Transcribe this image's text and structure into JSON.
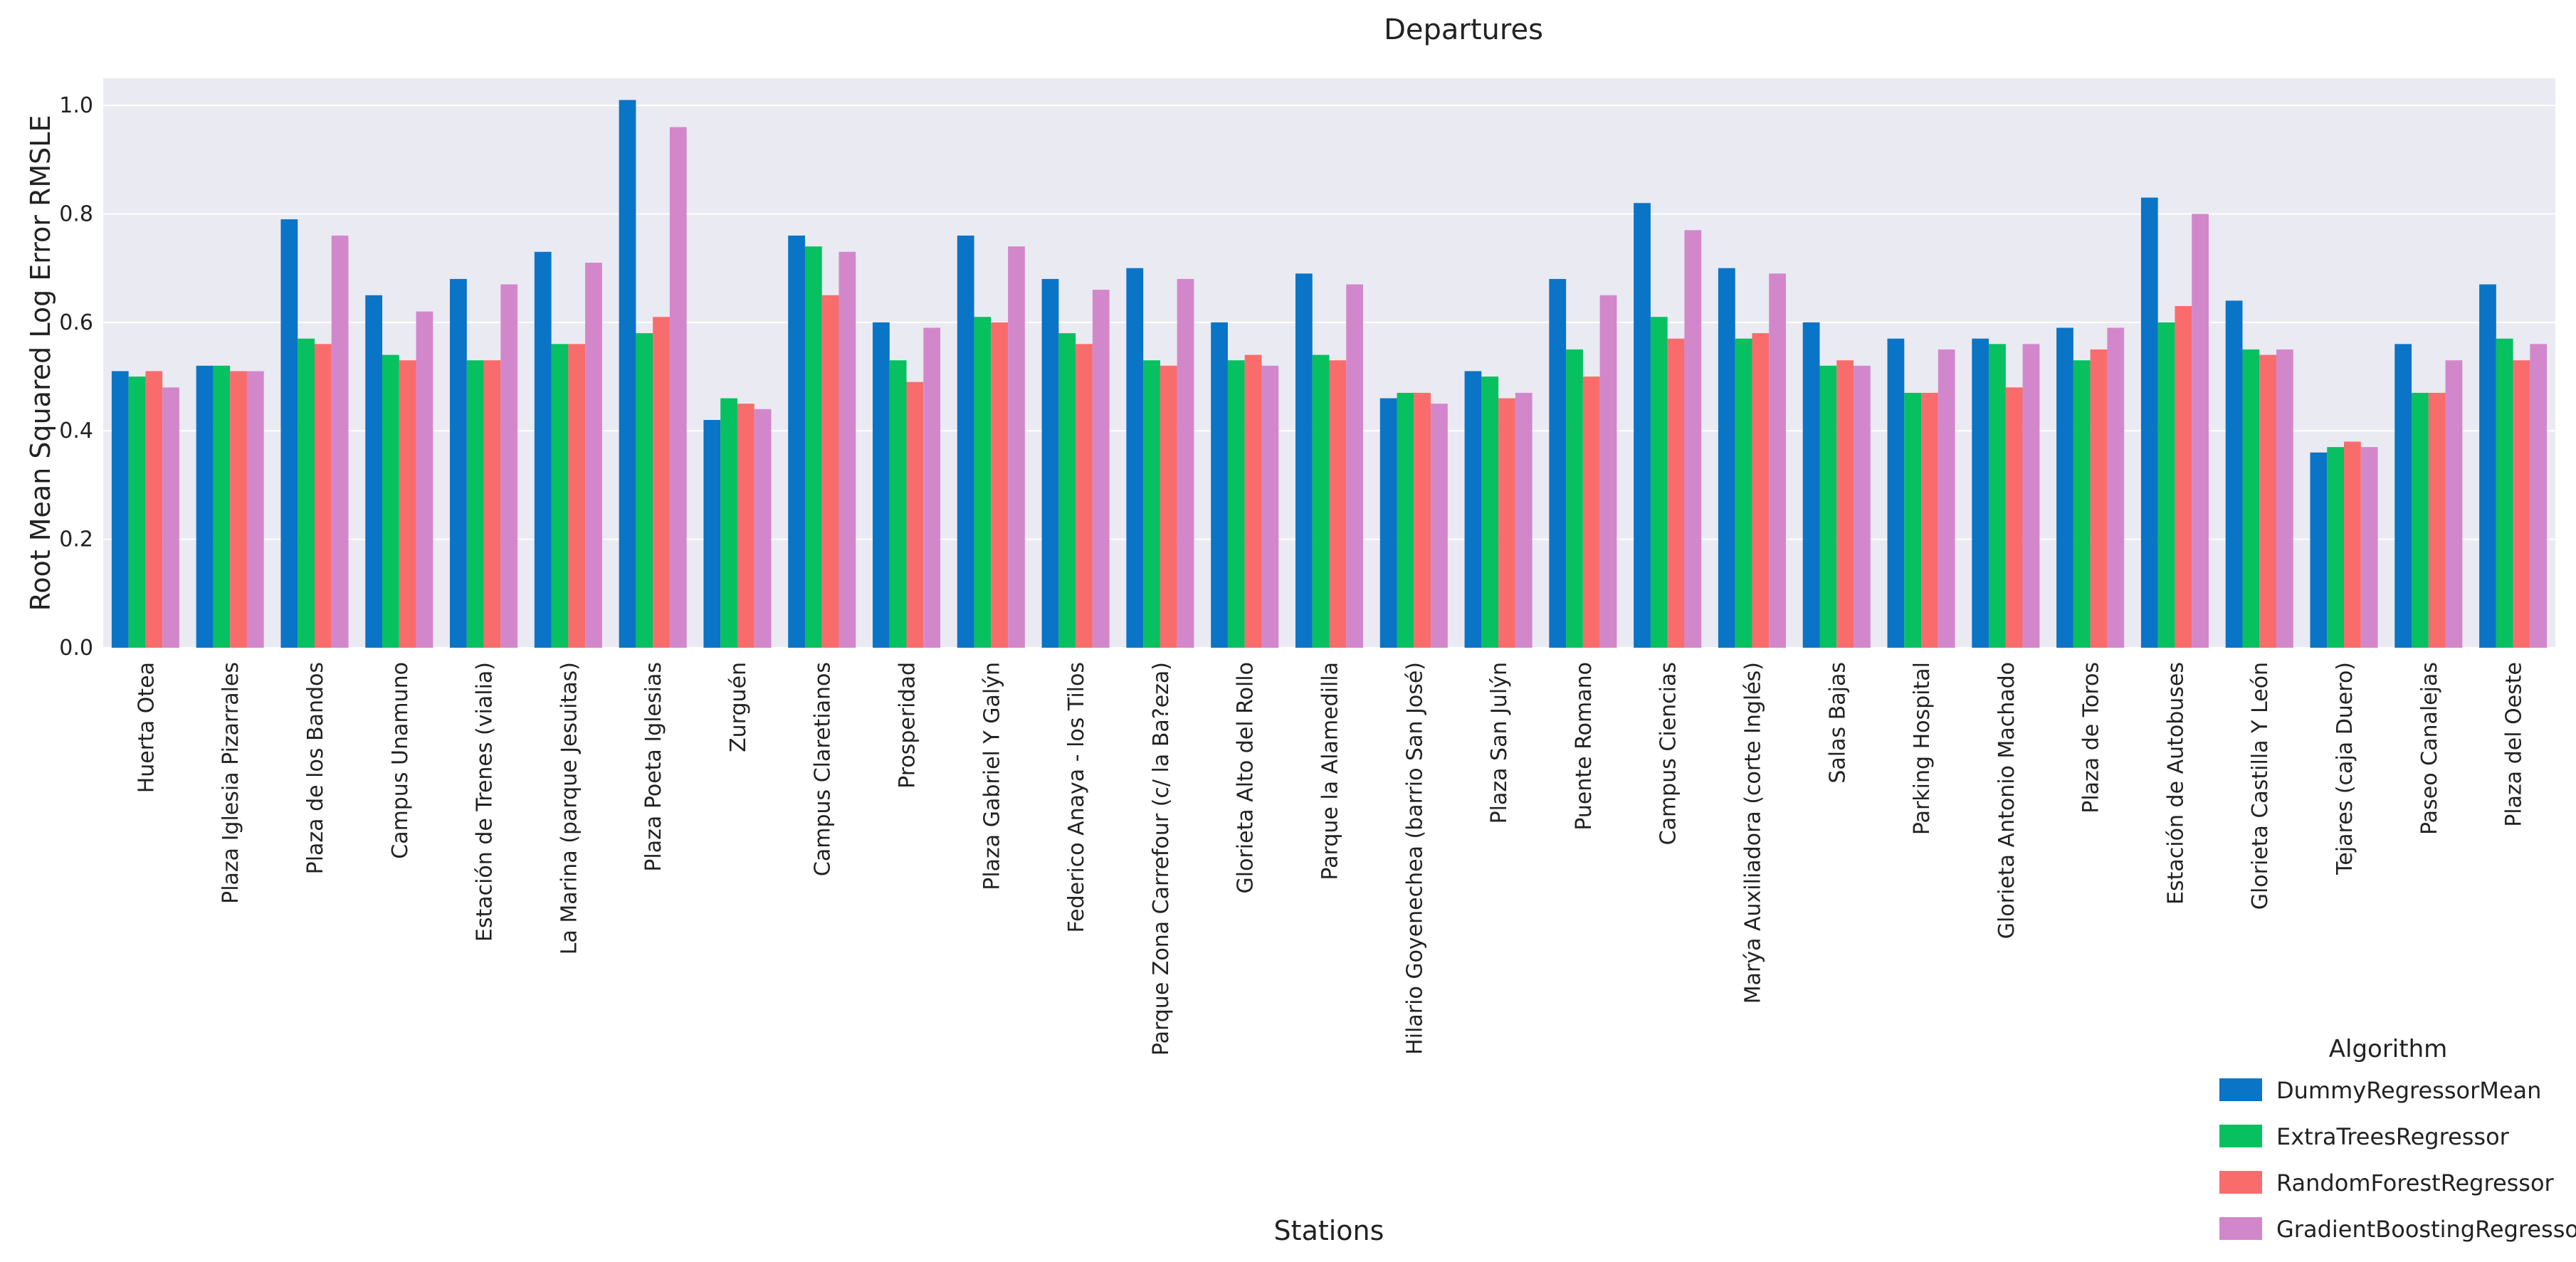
{
  "chart_data": {
    "type": "bar",
    "title": "Departures",
    "xlabel": "Stations",
    "ylabel": "Root Mean Squared Log Error RMSLE",
    "ylim": [
      0,
      1.05
    ],
    "yticks": [
      "0.0",
      "0.2",
      "0.4",
      "0.6",
      "0.8",
      "1.0"
    ],
    "ytick_values": [
      0,
      0.2,
      0.4,
      0.6,
      0.8,
      1.0
    ],
    "grid": true,
    "legend_title": "Algorithm",
    "legend_position": "bottom-right",
    "categories": [
      "Huerta Otea",
      "Plaza Iglesia Pizarrales",
      "Plaza de los Bandos",
      "Campus Unamuno",
      "Estación de Trenes (vialia)",
      "La Marina (parque Jesuitas)",
      "Plaza Poeta Iglesias",
      "Zurguén",
      "Campus Claretianos",
      "Prosperidad",
      "Plaza Gabriel Y Galýn",
      "Federico Anaya - los Tilos",
      "Parque Zona Carrefour (c/ la Ba?eza)",
      "Glorieta Alto del Rollo",
      "Parque la Alamedilla",
      "Hilario Goyenechea (barrio San José)",
      "Plaza San Julýn",
      "Puente Romano",
      "Campus Ciencias",
      "Marýa Auxiliadora (corte Inglés)",
      "Salas Bajas",
      "Parking Hospital",
      "Glorieta Antonio Machado",
      "Plaza de Toros",
      "Estación de Autobuses",
      "Glorieta Castilla Y León",
      "Tejares (caja Duero)",
      "Paseo Canalejas",
      "Plaza del Oeste"
    ],
    "series": [
      {
        "name": "DummyRegressorMean",
        "color": "#0a74c6",
        "values": [
          0.51,
          0.52,
          0.79,
          0.65,
          0.68,
          0.73,
          1.01,
          0.42,
          0.76,
          0.6,
          0.76,
          0.68,
          0.7,
          0.6,
          0.69,
          0.46,
          0.51,
          0.68,
          0.82,
          0.7,
          0.6,
          0.57,
          0.57,
          0.59,
          0.83,
          0.64,
          0.36,
          0.56,
          0.67
        ]
      },
      {
        "name": "ExtraTreesRegressor",
        "color": "#07c060",
        "values": [
          0.5,
          0.52,
          0.57,
          0.54,
          0.53,
          0.56,
          0.58,
          0.46,
          0.74,
          0.53,
          0.61,
          0.58,
          0.53,
          0.53,
          0.54,
          0.47,
          0.5,
          0.55,
          0.61,
          0.57,
          0.52,
          0.47,
          0.56,
          0.53,
          0.6,
          0.55,
          0.37,
          0.47,
          0.57
        ]
      },
      {
        "name": "RandomForestRegressor",
        "color": "#f96c6c",
        "values": [
          0.51,
          0.51,
          0.56,
          0.53,
          0.53,
          0.56,
          0.61,
          0.45,
          0.65,
          0.49,
          0.6,
          0.56,
          0.52,
          0.54,
          0.53,
          0.47,
          0.46,
          0.5,
          0.57,
          0.58,
          0.53,
          0.47,
          0.48,
          0.55,
          0.63,
          0.54,
          0.38,
          0.47,
          0.53
        ]
      },
      {
        "name": "GradientBoostingRegressor",
        "color": "#d387cb",
        "values": [
          0.48,
          0.51,
          0.76,
          0.62,
          0.67,
          0.71,
          0.96,
          0.44,
          0.73,
          0.59,
          0.74,
          0.66,
          0.68,
          0.52,
          0.67,
          0.45,
          0.47,
          0.65,
          0.77,
          0.69,
          0.52,
          0.55,
          0.56,
          0.59,
          0.8,
          0.55,
          0.37,
          0.53,
          0.56
        ]
      }
    ]
  }
}
